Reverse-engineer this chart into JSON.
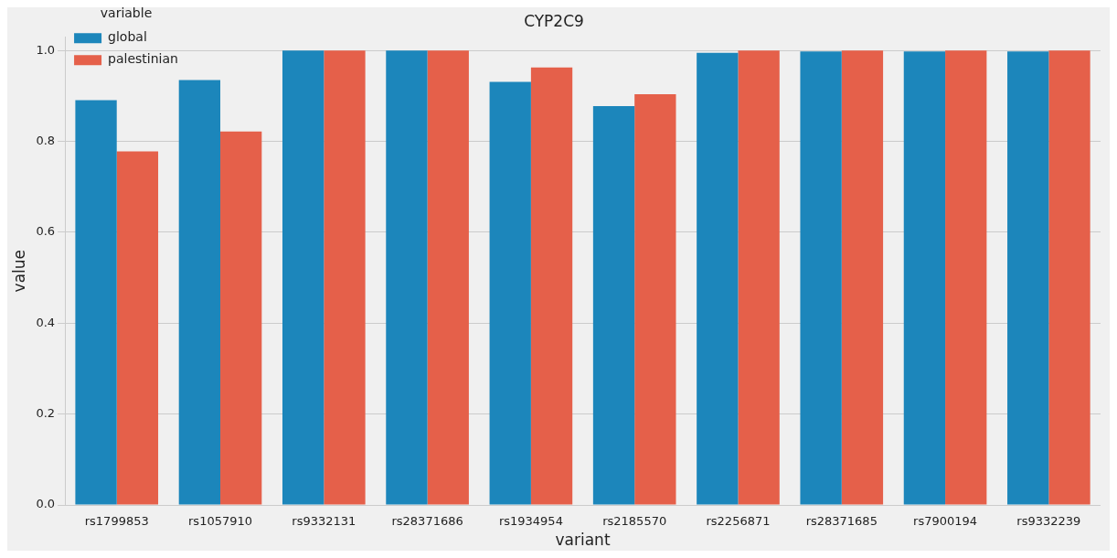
{
  "chart_data": {
    "type": "bar",
    "title": "CYP2C9",
    "xlabel": "variant",
    "ylabel": "value",
    "legend_title": "variable",
    "categories": [
      "rs1799853",
      "rs1057910",
      "rs9332131",
      "rs28371686",
      "rs1934954",
      "rs2185570",
      "rs2256871",
      "rs28371685",
      "rs7900194",
      "rs9332239"
    ],
    "series": [
      {
        "name": "global",
        "color": "#1c86bb",
        "values": [
          0.891,
          0.935,
          1.0,
          1.0,
          0.931,
          0.878,
          0.995,
          0.998,
          0.998,
          0.998
        ]
      },
      {
        "name": "palestinian",
        "color": "#e5604a",
        "values": [
          0.778,
          0.822,
          1.0,
          1.0,
          0.963,
          0.904,
          1.0,
          1.0,
          1.0,
          1.0
        ]
      }
    ],
    "ylim": [
      0,
      1.03
    ],
    "yticks": [
      {
        "value": 0,
        "label": "0.0"
      },
      0.2,
      0.4,
      0.6,
      0.8,
      {
        "value": 1,
        "label": "1.0"
      }
    ],
    "grid": "y",
    "legend": "top left"
  }
}
